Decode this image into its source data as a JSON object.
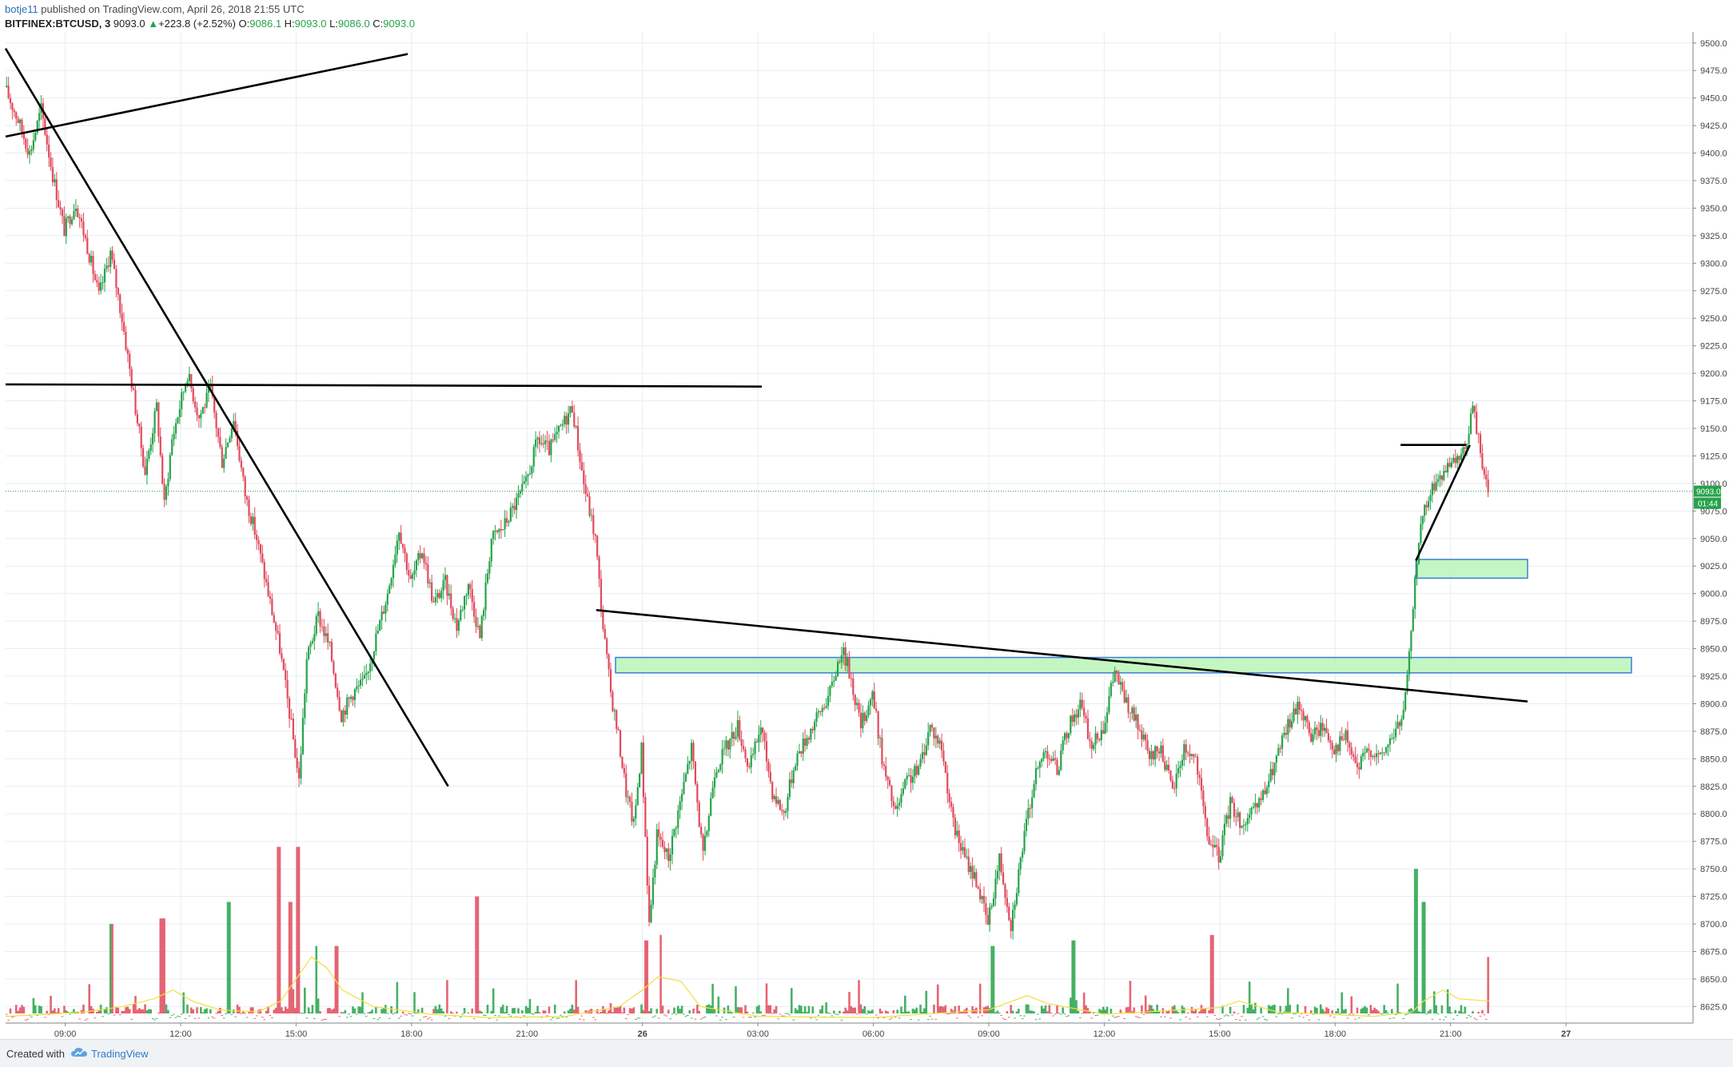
{
  "header": {
    "publisher_user": "botje11",
    "publisher_rest": " published on TradingView.com, April 26, 2018 21:55 UTC",
    "symbol": "BITFINEX:BTCUSD, 3",
    "last": "9093.0",
    "change_arrow": "▲",
    "change": "+223.8 (+2.52%)",
    "o_label": "O:",
    "o_value": "9086.1",
    "h_label": "H:",
    "h_value": "9093.0",
    "l_label": "L:",
    "l_value": "9086.0",
    "c_label": "C:",
    "c_value": "9093.0"
  },
  "footer": {
    "created_with": "Created with",
    "brand": "TradingView",
    "logo_icon": "tradingview-cloud-icon"
  },
  "price_tag": {
    "price": "9093.0",
    "countdown": "01:44",
    "color": "#26a34a"
  },
  "colors": {
    "up": "#26a34a",
    "down": "#e04a5c",
    "volume_ma": "#f0e040",
    "zone_fill": "#b8f5b8",
    "zone_border": "#3b7fd6",
    "trendline": "#000000",
    "grid": "#e8eef2"
  },
  "chart_data": {
    "type": "candlestick",
    "symbol": "BITFINEX:BTCUSD",
    "interval": "3",
    "y_ticks": [
      9500.0,
      9475.0,
      9450.0,
      9425.0,
      9400.0,
      9375.0,
      9350.0,
      9325.0,
      9300.0,
      9275.0,
      9250.0,
      9225.0,
      9200.0,
      9175.0,
      9150.0,
      9125.0,
      9100.0,
      9075.0,
      9050.0,
      9025.0,
      9000.0,
      8975.0,
      8950.0,
      8925.0,
      8900.0,
      8875.0,
      8850.0,
      8825.0,
      8800.0,
      8775.0,
      8750.0,
      8725.0,
      8700.0,
      8675.0,
      8650.0,
      8625.0
    ],
    "y_range": [
      8610,
      9510
    ],
    "x_ticks": [
      {
        "label": "09:00",
        "hours": 0
      },
      {
        "label": "12:00",
        "hours": 3
      },
      {
        "label": "15:00",
        "hours": 6
      },
      {
        "label": "18:00",
        "hours": 9
      },
      {
        "label": "21:00",
        "hours": 12
      },
      {
        "label": "26",
        "hours": 15,
        "bold": true
      },
      {
        "label": "03:00",
        "hours": 18
      },
      {
        "label": "06:00",
        "hours": 21
      },
      {
        "label": "09:00",
        "hours": 24
      },
      {
        "label": "12:00",
        "hours": 27
      },
      {
        "label": "15:00",
        "hours": 30
      },
      {
        "label": "18:00",
        "hours": 33
      },
      {
        "label": "21:00",
        "hours": 36
      },
      {
        "label": "27",
        "hours": 39,
        "bold": true
      }
    ],
    "x_range_hours": [
      -1.55,
      42.3
    ],
    "price_path": [
      [
        -1.55,
        9460
      ],
      [
        -1.2,
        9430
      ],
      [
        -0.9,
        9400
      ],
      [
        -0.6,
        9440
      ],
      [
        -0.3,
        9380
      ],
      [
        0.0,
        9330
      ],
      [
        0.3,
        9355
      ],
      [
        0.6,
        9315
      ],
      [
        0.9,
        9270
      ],
      [
        1.2,
        9310
      ],
      [
        1.5,
        9250
      ],
      [
        1.8,
        9180
      ],
      [
        2.1,
        9110
      ],
      [
        2.4,
        9170
      ],
      [
        2.6,
        9080
      ],
      [
        2.8,
        9140
      ],
      [
        3.0,
        9170
      ],
      [
        3.2,
        9200
      ],
      [
        3.5,
        9160
      ],
      [
        3.8,
        9185
      ],
      [
        4.1,
        9120
      ],
      [
        4.4,
        9160
      ],
      [
        4.7,
        9090
      ],
      [
        5.0,
        9050
      ],
      [
        5.3,
        9000
      ],
      [
        5.6,
        8950
      ],
      [
        5.9,
        8880
      ],
      [
        6.1,
        8830
      ],
      [
        6.3,
        8940
      ],
      [
        6.6,
        8980
      ],
      [
        6.9,
        8950
      ],
      [
        7.2,
        8890
      ],
      [
        7.5,
        8910
      ],
      [
        7.8,
        8920
      ],
      [
        8.1,
        8960
      ],
      [
        8.4,
        9000
      ],
      [
        8.7,
        9060
      ],
      [
        9.0,
        9010
      ],
      [
        9.3,
        9040
      ],
      [
        9.6,
        8990
      ],
      [
        9.9,
        9010
      ],
      [
        10.2,
        8970
      ],
      [
        10.5,
        9010
      ],
      [
        10.8,
        8960
      ],
      [
        11.1,
        9050
      ],
      [
        11.4,
        9060
      ],
      [
        11.7,
        9080
      ],
      [
        12.0,
        9100
      ],
      [
        12.3,
        9140
      ],
      [
        12.6,
        9130
      ],
      [
        12.9,
        9150
      ],
      [
        13.2,
        9170
      ],
      [
        13.5,
        9100
      ],
      [
        13.8,
        9050
      ],
      [
        14.0,
        8970
      ],
      [
        14.2,
        8910
      ],
      [
        14.4,
        8870
      ],
      [
        14.6,
        8820
      ],
      [
        14.8,
        8790
      ],
      [
        15.0,
        8860
      ],
      [
        15.2,
        8700
      ],
      [
        15.4,
        8780
      ],
      [
        15.7,
        8760
      ],
      [
        16.0,
        8810
      ],
      [
        16.3,
        8860
      ],
      [
        16.6,
        8760
      ],
      [
        16.9,
        8840
      ],
      [
        17.2,
        8860
      ],
      [
        17.5,
        8880
      ],
      [
        17.8,
        8840
      ],
      [
        18.1,
        8880
      ],
      [
        18.4,
        8820
      ],
      [
        18.7,
        8800
      ],
      [
        19.0,
        8850
      ],
      [
        19.3,
        8870
      ],
      [
        19.6,
        8890
      ],
      [
        19.9,
        8910
      ],
      [
        20.2,
        8950
      ],
      [
        20.4,
        8930
      ],
      [
        20.7,
        8880
      ],
      [
        21.0,
        8910
      ],
      [
        21.3,
        8840
      ],
      [
        21.6,
        8800
      ],
      [
        21.9,
        8830
      ],
      [
        22.2,
        8840
      ],
      [
        22.5,
        8880
      ],
      [
        22.8,
        8860
      ],
      [
        23.1,
        8790
      ],
      [
        23.4,
        8760
      ],
      [
        23.7,
        8740
      ],
      [
        24.0,
        8700
      ],
      [
        24.3,
        8760
      ],
      [
        24.6,
        8700
      ],
      [
        24.9,
        8770
      ],
      [
        25.2,
        8830
      ],
      [
        25.5,
        8860
      ],
      [
        25.8,
        8840
      ],
      [
        26.1,
        8880
      ],
      [
        26.4,
        8900
      ],
      [
        26.7,
        8860
      ],
      [
        27.0,
        8880
      ],
      [
        27.3,
        8930
      ],
      [
        27.6,
        8900
      ],
      [
        27.9,
        8880
      ],
      [
        28.2,
        8850
      ],
      [
        28.5,
        8860
      ],
      [
        28.8,
        8820
      ],
      [
        29.1,
        8860
      ],
      [
        29.4,
        8850
      ],
      [
        29.7,
        8780
      ],
      [
        30.0,
        8760
      ],
      [
        30.3,
        8810
      ],
      [
        30.6,
        8790
      ],
      [
        30.9,
        8800
      ],
      [
        31.2,
        8820
      ],
      [
        31.5,
        8850
      ],
      [
        31.8,
        8880
      ],
      [
        32.1,
        8900
      ],
      [
        32.4,
        8870
      ],
      [
        32.7,
        8880
      ],
      [
        33.0,
        8860
      ],
      [
        33.3,
        8870
      ],
      [
        33.6,
        8840
      ],
      [
        33.9,
        8860
      ],
      [
        34.2,
        8850
      ],
      [
        34.5,
        8870
      ],
      [
        34.8,
        8890
      ],
      [
        35.0,
        8960
      ],
      [
        35.1,
        9020
      ],
      [
        35.3,
        9070
      ],
      [
        35.6,
        9100
      ],
      [
        35.9,
        9110
      ],
      [
        36.2,
        9120
      ],
      [
        36.4,
        9130
      ],
      [
        36.6,
        9170
      ],
      [
        36.8,
        9130
      ],
      [
        37.0,
        9090
      ]
    ],
    "volume_ma_path": [
      [
        -1.55,
        8616
      ],
      [
        -0.5,
        8618
      ],
      [
        0.5,
        8620
      ],
      [
        1.5,
        8625
      ],
      [
        2.3,
        8632
      ],
      [
        2.8,
        8640
      ],
      [
        3.3,
        8630
      ],
      [
        4.0,
        8622
      ],
      [
        5.0,
        8620
      ],
      [
        5.6,
        8630
      ],
      [
        6.0,
        8650
      ],
      [
        6.4,
        8670
      ],
      [
        6.8,
        8660
      ],
      [
        7.2,
        8640
      ],
      [
        8.0,
        8625
      ],
      [
        9.5,
        8618
      ],
      [
        11.0,
        8615
      ],
      [
        13.0,
        8616
      ],
      [
        14.4,
        8625
      ],
      [
        15.0,
        8640
      ],
      [
        15.4,
        8652
      ],
      [
        16.0,
        8648
      ],
      [
        16.5,
        8625
      ],
      [
        18.0,
        8616
      ],
      [
        21.0,
        8615
      ],
      [
        24.0,
        8622
      ],
      [
        25.0,
        8635
      ],
      [
        25.5,
        8628
      ],
      [
        27.0,
        8618
      ],
      [
        30.0,
        8624
      ],
      [
        30.5,
        8630
      ],
      [
        31.5,
        8620
      ],
      [
        34.0,
        8616
      ],
      [
        35.0,
        8620
      ],
      [
        35.3,
        8630
      ],
      [
        35.8,
        8640
      ],
      [
        36.2,
        8632
      ],
      [
        37.0,
        8630
      ]
    ],
    "volume_spikes": [
      [
        1.2,
        8700
      ],
      [
        2.5,
        8705
      ],
      [
        4.2,
        8720
      ],
      [
        5.5,
        8770
      ],
      [
        5.8,
        8720
      ],
      [
        6.0,
        8770
      ],
      [
        6.5,
        8680
      ],
      [
        7.0,
        8680
      ],
      [
        10.7,
        8725
      ],
      [
        15.1,
        8685
      ],
      [
        15.5,
        8690
      ],
      [
        24.1,
        8680
      ],
      [
        26.2,
        8685
      ],
      [
        29.8,
        8690
      ],
      [
        35.1,
        8750
      ],
      [
        35.3,
        8720
      ],
      [
        37.0,
        8670
      ],
      [
        37.2,
        8650
      ]
    ],
    "trendlines": [
      {
        "name": "upper-resistance-line",
        "from": [
          -1.55,
          9415
        ],
        "to": [
          8.9,
          9490
        ]
      },
      {
        "name": "falling-trendline",
        "from": [
          -1.55,
          9495
        ],
        "to": [
          9.95,
          8825
        ]
      },
      {
        "name": "horizontal-resistance-line",
        "from": [
          -1.55,
          9190
        ],
        "to": [
          18.1,
          9188
        ]
      },
      {
        "name": "descending-neckline",
        "from": [
          13.8,
          8985
        ],
        "to": [
          38.0,
          8902
        ]
      },
      {
        "name": "flag-top-line",
        "from": [
          34.7,
          9135
        ],
        "to": [
          36.4,
          9135
        ]
      },
      {
        "name": "flag-rising-line",
        "from": [
          35.1,
          9030
        ],
        "to": [
          36.5,
          9135
        ]
      }
    ],
    "zones": [
      {
        "name": "support-zone-large",
        "x0": 14.3,
        "x1": 40.7,
        "y0": 8928,
        "y1": 8942
      },
      {
        "name": "support-zone-small",
        "x0": 35.1,
        "x1": 38.0,
        "y0": 9014,
        "y1": 9031
      }
    ],
    "current_price": 9093.0
  }
}
